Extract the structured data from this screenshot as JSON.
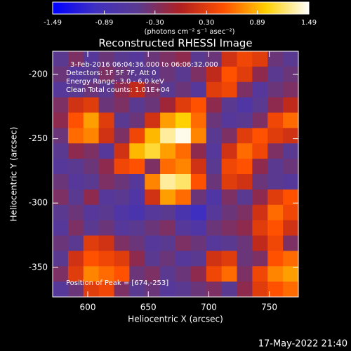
{
  "chart_data": {
    "type": "heatmap",
    "title": "Reconstructed RHESSI Image",
    "xlabel": "Heliocentric X (arcsec)",
    "ylabel": "Heliocentric Y (arcsec)",
    "xlim": [
      571,
      774
    ],
    "ylim": [
      -373,
      -182
    ],
    "xticks": [
      600,
      650,
      700,
      750
    ],
    "yticks": [
      -200,
      -250,
      -300,
      -350
    ],
    "colorbar": {
      "label": "(photons cm⁻² s⁻¹ asec⁻²)",
      "clim": [
        -1.49,
        1.49
      ],
      "ticks": [
        -1.49,
        -0.89,
        {
          "value": -0.3,
          "label": "-0.30"
        },
        {
          "value": 0.3,
          "label": "0.30"
        },
        0.89,
        1.49
      ]
    },
    "colormap": [
      "#0000ff",
      "#4030c0",
      "#5a3a90",
      "#b02020",
      "#ff5000",
      "#ffd000",
      "#ffffff"
    ],
    "annotations": [
      "3-Feb-2016 06:04:36.000 to 06:06:32.000",
      "Detectors: 1F 5F 7F, Att 0",
      "Energy Range: 3.0 - 6.0 keV",
      "Clean     Total counts: 1.01E+04"
    ],
    "peak_label": "Position of Peak = [674,-253]",
    "timestamp": "17-May-2022 21:40",
    "z": [
      [
        -0.5,
        -0.3,
        -0.6,
        -0.4,
        -0.5,
        -0.6,
        -0.4,
        -0.3,
        -0.2,
        -0.5,
        -0.4,
        0.2,
        0.4,
        0.3,
        -0.4,
        -0.5
      ],
      [
        -0.4,
        -0.6,
        -0.5,
        -0.3,
        -0.4,
        -0.5,
        -0.5,
        -0.4,
        -0.5,
        -0.3,
        0.1,
        0.5,
        0.3,
        -0.2,
        -0.5,
        -0.4
      ],
      [
        -0.6,
        -0.5,
        -0.4,
        -0.5,
        -0.2,
        0.1,
        -0.3,
        -0.5,
        -0.4,
        -0.6,
        0.3,
        0.4,
        -0.3,
        -0.6,
        -0.4,
        -0.3
      ],
      [
        -0.3,
        0.2,
        0.3,
        -0.4,
        -0.3,
        -0.5,
        -0.4,
        -0.1,
        0.3,
        0.5,
        -0.2,
        -0.5,
        -0.7,
        -0.5,
        -0.2,
        0.1
      ],
      [
        -0.2,
        0.5,
        0.8,
        0.3,
        -0.5,
        -0.4,
        0.2,
        0.8,
        1.0,
        0.6,
        -0.4,
        -0.6,
        -0.5,
        -0.3,
        0.4,
        0.6
      ],
      [
        -0.4,
        0.6,
        0.7,
        0.2,
        -0.3,
        0.4,
        0.9,
        1.3,
        1.45,
        0.7,
        -0.5,
        -0.3,
        0.3,
        0.5,
        0.3,
        0.2
      ],
      [
        -0.5,
        -0.2,
        -0.3,
        -0.6,
        0.2,
        0.9,
        1.1,
        0.8,
        0.6,
        -0.2,
        -0.6,
        0.2,
        0.6,
        0.4,
        -0.3,
        -0.5
      ],
      [
        -0.6,
        -0.5,
        -0.4,
        -0.2,
        0.4,
        0.5,
        -0.3,
        0.6,
        0.7,
        0.2,
        -0.5,
        0.4,
        0.5,
        -0.2,
        -0.5,
        -0.4
      ],
      [
        -0.4,
        -0.6,
        -0.5,
        -0.3,
        -0.4,
        -0.6,
        0.7,
        1.3,
        1.2,
        0.5,
        -0.4,
        0.3,
        0.2,
        -0.4,
        -0.5,
        -0.6
      ],
      [
        -0.3,
        -0.5,
        -0.2,
        -0.6,
        -0.5,
        -0.7,
        0.2,
        0.8,
        0.6,
        -0.4,
        -0.7,
        -0.3,
        -0.5,
        -0.2,
        0.3,
        0.5
      ],
      [
        -0.5,
        -0.4,
        -0.6,
        -0.5,
        -0.7,
        -0.8,
        -0.6,
        -0.5,
        -0.8,
        -1.0,
        -0.6,
        -0.4,
        -0.3,
        0.2,
        0.6,
        0.4
      ],
      [
        -0.6,
        -0.3,
        -0.5,
        -0.4,
        -0.6,
        -0.5,
        -0.4,
        -0.3,
        -0.6,
        -0.7,
        -0.4,
        -0.3,
        -0.2,
        0.3,
        0.5,
        0.2
      ],
      [
        -0.4,
        -0.5,
        0.3,
        0.2,
        -0.3,
        -0.4,
        -0.6,
        -0.5,
        -0.3,
        -0.4,
        -0.6,
        -0.5,
        -0.4,
        0.1,
        0.4,
        -0.3
      ],
      [
        -0.5,
        0.2,
        0.5,
        0.4,
        0.3,
        -0.2,
        -0.5,
        -0.4,
        -0.6,
        -0.5,
        0.2,
        0.3,
        -0.4,
        -0.3,
        0.5,
        0.6
      ],
      [
        -0.3,
        0.3,
        0.7,
        0.6,
        0.5,
        -0.4,
        -0.3,
        -0.5,
        -0.4,
        -0.2,
        0.4,
        0.6,
        -0.3,
        0.4,
        0.7,
        0.8
      ],
      [
        -0.6,
        -0.4,
        0.3,
        0.4,
        -0.3,
        -0.5,
        -0.4,
        -0.6,
        -0.5,
        -0.4,
        -0.3,
        -0.5,
        -0.2,
        0.3,
        0.5,
        0.6
      ]
    ]
  }
}
